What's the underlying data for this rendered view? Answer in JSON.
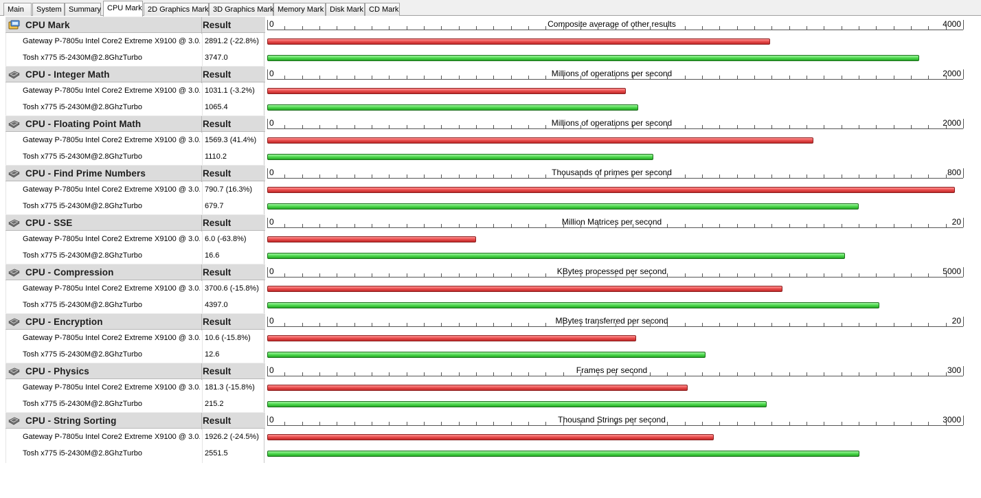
{
  "tabs": [
    {
      "label": "Main",
      "active": false
    },
    {
      "label": "System",
      "active": false
    },
    {
      "label": "Summary",
      "active": false
    },
    {
      "label": "CPU Mark",
      "active": true
    },
    {
      "label": "2D Graphics Mark",
      "active": false
    },
    {
      "label": "3D Graphics Mark",
      "active": false
    },
    {
      "label": "Memory Mark",
      "active": false
    },
    {
      "label": "Disk Mark",
      "active": false
    },
    {
      "label": "CD Mark",
      "active": false
    }
  ],
  "result_header": "Result",
  "colors": {
    "machine_a": "#e84c4c",
    "machine_b": "#4ed84e"
  },
  "sections": [
    {
      "title": "CPU Mark",
      "icon": "cpu-mark-icon",
      "axis_min": "0",
      "axis_max": "4000",
      "axis_max_value": 4000,
      "unit": "Composite average of other results",
      "rows": [
        {
          "label": "Gateway P-7805u Intel Core2 Extreme X9100 @ 3.0...",
          "value": "2891.2 (-22.8%)",
          "number": 2891.2
        },
        {
          "label": "Tosh x775 i5-2430M@2.8GhzTurbo",
          "value": "3747.0",
          "number": 3747.0
        }
      ]
    },
    {
      "title": "CPU - Integer Math",
      "icon": "processor-chip-icon",
      "axis_min": "0",
      "axis_max": "2000",
      "axis_max_value": 2000,
      "unit": "Millions of operations per second",
      "rows": [
        {
          "label": "Gateway P-7805u Intel Core2 Extreme X9100 @ 3.0...",
          "value": "1031.1 (-3.2%)",
          "number": 1031.1
        },
        {
          "label": "Tosh x775 i5-2430M@2.8GhzTurbo",
          "value": "1065.4",
          "number": 1065.4
        }
      ]
    },
    {
      "title": "CPU - Floating Point Math",
      "icon": "processor-chip-icon",
      "axis_min": "0",
      "axis_max": "2000",
      "axis_max_value": 2000,
      "unit": "Millions of operations per second",
      "rows": [
        {
          "label": "Gateway P-7805u Intel Core2 Extreme X9100 @ 3.0...",
          "value": "1569.3 (41.4%)",
          "number": 1569.3
        },
        {
          "label": "Tosh x775 i5-2430M@2.8GhzTurbo",
          "value": "1110.2",
          "number": 1110.2
        }
      ]
    },
    {
      "title": "CPU - Find Prime Numbers",
      "icon": "processor-chip-icon",
      "axis_min": "0",
      "axis_max": "800",
      "axis_max_value": 800,
      "unit": "Thousands of primes per second",
      "rows": [
        {
          "label": "Gateway P-7805u Intel Core2 Extreme X9100 @ 3.0...",
          "value": "790.7 (16.3%)",
          "number": 790.7
        },
        {
          "label": "Tosh x775 i5-2430M@2.8GhzTurbo",
          "value": "679.7",
          "number": 679.7
        }
      ]
    },
    {
      "title": "CPU - SSE",
      "icon": "processor-chip-icon",
      "axis_min": "0",
      "axis_max": "20",
      "axis_max_value": 20,
      "unit": "Million Matrices per second",
      "rows": [
        {
          "label": "Gateway P-7805u Intel Core2 Extreme X9100 @ 3.0...",
          "value": "6.0 (-63.8%)",
          "number": 6.0
        },
        {
          "label": "Tosh x775 i5-2430M@2.8GhzTurbo",
          "value": "16.6",
          "number": 16.6
        }
      ]
    },
    {
      "title": "CPU - Compression",
      "icon": "processor-chip-icon",
      "axis_min": "0",
      "axis_max": "5000",
      "axis_max_value": 5000,
      "unit": "KBytes processed per second",
      "rows": [
        {
          "label": "Gateway P-7805u Intel Core2 Extreme X9100 @ 3.0...",
          "value": "3700.6 (-15.8%)",
          "number": 3700.6
        },
        {
          "label": "Tosh x775 i5-2430M@2.8GhzTurbo",
          "value": "4397.0",
          "number": 4397.0
        }
      ]
    },
    {
      "title": "CPU - Encryption",
      "icon": "processor-chip-icon",
      "axis_min": "0",
      "axis_max": "20",
      "axis_max_value": 20,
      "unit": "MBytes transferred per second",
      "rows": [
        {
          "label": "Gateway P-7805u Intel Core2 Extreme X9100 @ 3.0...",
          "value": "10.6 (-15.8%)",
          "number": 10.6
        },
        {
          "label": "Tosh x775 i5-2430M@2.8GhzTurbo",
          "value": "12.6",
          "number": 12.6
        }
      ]
    },
    {
      "title": "CPU - Physics",
      "icon": "processor-chip-icon",
      "axis_min": "0",
      "axis_max": "300",
      "axis_max_value": 300,
      "unit": "Frames per second",
      "rows": [
        {
          "label": "Gateway P-7805u Intel Core2 Extreme X9100 @ 3.0...",
          "value": "181.3 (-15.8%)",
          "number": 181.3
        },
        {
          "label": "Tosh x775 i5-2430M@2.8GhzTurbo",
          "value": "215.2",
          "number": 215.2
        }
      ]
    },
    {
      "title": "CPU - String Sorting",
      "icon": "processor-chip-icon",
      "axis_min": "0",
      "axis_max": "3000",
      "axis_max_value": 3000,
      "unit": "Thousand Strings per second",
      "rows": [
        {
          "label": "Gateway P-7805u Intel Core2 Extreme X9100 @ 3.0...",
          "value": "1926.2 (-24.5%)",
          "number": 1926.2
        },
        {
          "label": "Tosh x775 i5-2430M@2.8GhzTurbo",
          "value": "2551.5",
          "number": 2551.5
        }
      ]
    }
  ]
}
